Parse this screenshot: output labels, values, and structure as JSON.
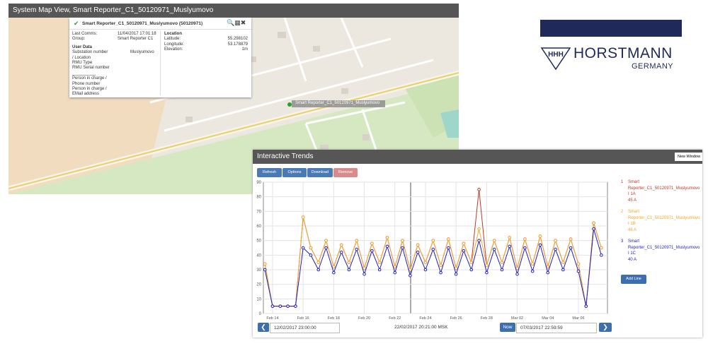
{
  "map_window": {
    "title": "System Map View, Smart Reporter_C1_50120971_Muslyumovo",
    "popup": {
      "title": "Smart Reporter_C1_50120971_Muslyumovo (50120971)",
      "left": [
        [
          "Last Comms:",
          "11/04/2017 17:01:18"
        ],
        [
          "Group:",
          "Smart Reporter C1"
        ]
      ],
      "user_data": "User Data",
      "fields": [
        [
          "Substation number",
          "Muslyumovo"
        ],
        [
          "/ Location",
          ""
        ],
        [
          "RMU Type",
          ""
        ],
        [
          "RMU Serial number",
          ""
        ],
        [
          "__________",
          ""
        ],
        [
          "Person in charge /",
          ""
        ],
        [
          "Phone number",
          ""
        ],
        [
          "Person in charge /",
          ""
        ],
        [
          "EMail address",
          ""
        ]
      ],
      "location": "Location",
      "right": [
        [
          "Latitude:",
          "55.298102"
        ],
        [
          "Longitude:",
          "53.178879"
        ],
        [
          "Elevation:",
          "1m"
        ]
      ]
    },
    "marker_label": "Smart Reporter_C1_50120971_Muslyumovo"
  },
  "logo": {
    "brand": "HORSTMANN",
    "country": "GERMANY"
  },
  "trends_window": {
    "title": "Interactive Trends",
    "new_window": "New Window",
    "buttons": [
      "Refresh",
      "Options",
      "Download",
      "Remove"
    ],
    "legend": [
      {
        "number": "1",
        "device": "Smart Reporter_C1_50120971_Muslyumovo",
        "reading": "45 A"
      },
      {
        "number": "2",
        "device": "Smart Reporter_C1_50120971_Muslyumovo",
        "reading": "46 A"
      },
      {
        "number": "3",
        "device": "Smart Reporter_C1_50120971_Muslyumovo",
        "reading": "40 A"
      }
    ],
    "add_line": "Add Line",
    "start": "12/02/2017 23:00:00",
    "current": "22/02/2017 20:21:00 MSK",
    "now": "Now",
    "end": "07/03/2017 22:59:59"
  },
  "chart_data": {
    "type": "line",
    "x": [
      13.5,
      14,
      14.5,
      15,
      15.5,
      16,
      16.5,
      17,
      17.5,
      18,
      18.5,
      19,
      19.5,
      20,
      20.5,
      21,
      21.5,
      22,
      22.5,
      23,
      23.5,
      24,
      24.5,
      25,
      25.5,
      26,
      26.5,
      27,
      27.5,
      28,
      28.5,
      29,
      29.5,
      30,
      30.5,
      31,
      31.5,
      32,
      32.5,
      33,
      33.5,
      34,
      34.5,
      35,
      35.5
    ],
    "series": [
      {
        "name": "I 1A",
        "color": "#c0392b",
        "values": [
          34,
          5,
          5,
          5,
          5,
          66,
          45,
          35,
          50,
          32,
          47,
          35,
          50,
          31,
          48,
          35,
          52,
          32,
          50,
          30,
          47,
          35,
          50,
          33,
          51,
          31,
          48,
          35,
          85,
          33,
          50,
          35,
          52,
          31,
          51,
          34,
          53,
          32,
          50,
          35,
          51,
          34,
          5,
          62,
          45
        ]
      },
      {
        "name": "I 1B",
        "color": "#f0a830",
        "values": [
          34,
          5,
          5,
          5,
          5,
          66,
          45,
          35,
          50,
          32,
          47,
          35,
          50,
          31,
          48,
          35,
          52,
          32,
          50,
          30,
          47,
          35,
          50,
          33,
          51,
          31,
          48,
          35,
          58,
          33,
          50,
          35,
          52,
          31,
          51,
          34,
          53,
          32,
          50,
          35,
          51,
          34,
          5,
          62,
          45
        ]
      },
      {
        "name": "I 1C",
        "color": "#1f1fbf",
        "values": [
          30,
          5,
          5,
          5,
          5,
          45,
          40,
          30,
          45,
          28,
          42,
          30,
          44,
          27,
          43,
          30,
          46,
          28,
          45,
          26,
          42,
          30,
          44,
          28,
          45,
          27,
          43,
          30,
          50,
          28,
          44,
          30,
          46,
          27,
          45,
          29,
          47,
          28,
          44,
          30,
          45,
          29,
          5,
          58,
          40
        ]
      }
    ],
    "xlim": [
      13.4,
      35.9
    ],
    "ylim": [
      0,
      90
    ],
    "xticks": [
      {
        "value": 14,
        "label": "Feb 14"
      },
      {
        "value": 16,
        "label": "Feb 16"
      },
      {
        "value": 18,
        "label": "Feb 18"
      },
      {
        "value": 20,
        "label": "Feb 20"
      },
      {
        "value": 22,
        "label": "Feb 22"
      },
      {
        "value": 24,
        "label": "Feb 24"
      },
      {
        "value": 26,
        "label": "Feb 26"
      },
      {
        "value": 28,
        "label": "Feb 28"
      },
      {
        "value": 30,
        "label": "Mar 02"
      },
      {
        "value": 32,
        "label": "Mar 04"
      },
      {
        "value": 34,
        "label": "Mar 06"
      }
    ],
    "yticks": [
      0,
      10,
      20,
      30,
      40,
      50,
      60,
      70,
      80,
      90
    ],
    "grid": true
  }
}
